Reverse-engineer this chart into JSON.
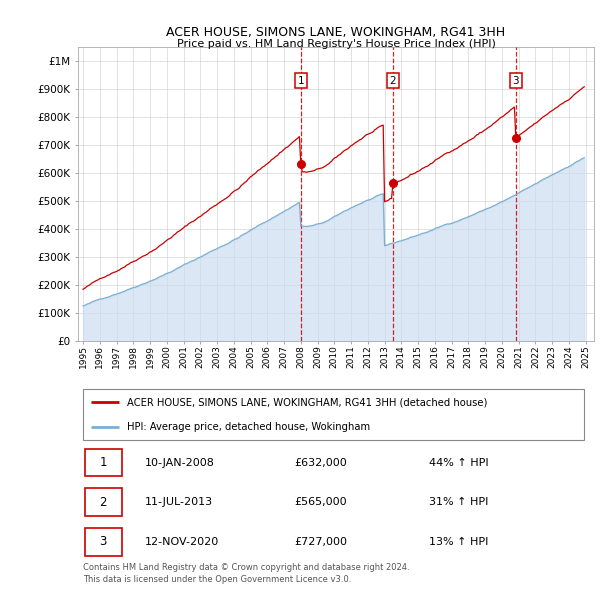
{
  "title": "ACER HOUSE, SIMONS LANE, WOKINGHAM, RG41 3HH",
  "subtitle": "Price paid vs. HM Land Registry's House Price Index (HPI)",
  "legend_line1": "ACER HOUSE, SIMONS LANE, WOKINGHAM, RG41 3HH (detached house)",
  "legend_line2": "HPI: Average price, detached house, Wokingham",
  "red_color": "#cc0000",
  "blue_color": "#7bafd4",
  "blue_fill": "#ccddf0",
  "purchase1_date": "10-JAN-2008",
  "purchase1_price": 632000,
  "purchase1_hpi": "44% ↑ HPI",
  "purchase1_label": "1",
  "purchase2_date": "11-JUL-2013",
  "purchase2_price": 565000,
  "purchase2_hpi": "31% ↑ HPI",
  "purchase2_label": "2",
  "purchase3_date": "12-NOV-2020",
  "purchase3_price": 727000,
  "purchase3_hpi": "13% ↑ HPI",
  "purchase3_label": "3",
  "footer1": "Contains HM Land Registry data © Crown copyright and database right 2024.",
  "footer2": "This data is licensed under the Open Government Licence v3.0.",
  "ylim_max": 1050000,
  "ylim_min": 0,
  "year_start": 1995,
  "year_end": 2025
}
